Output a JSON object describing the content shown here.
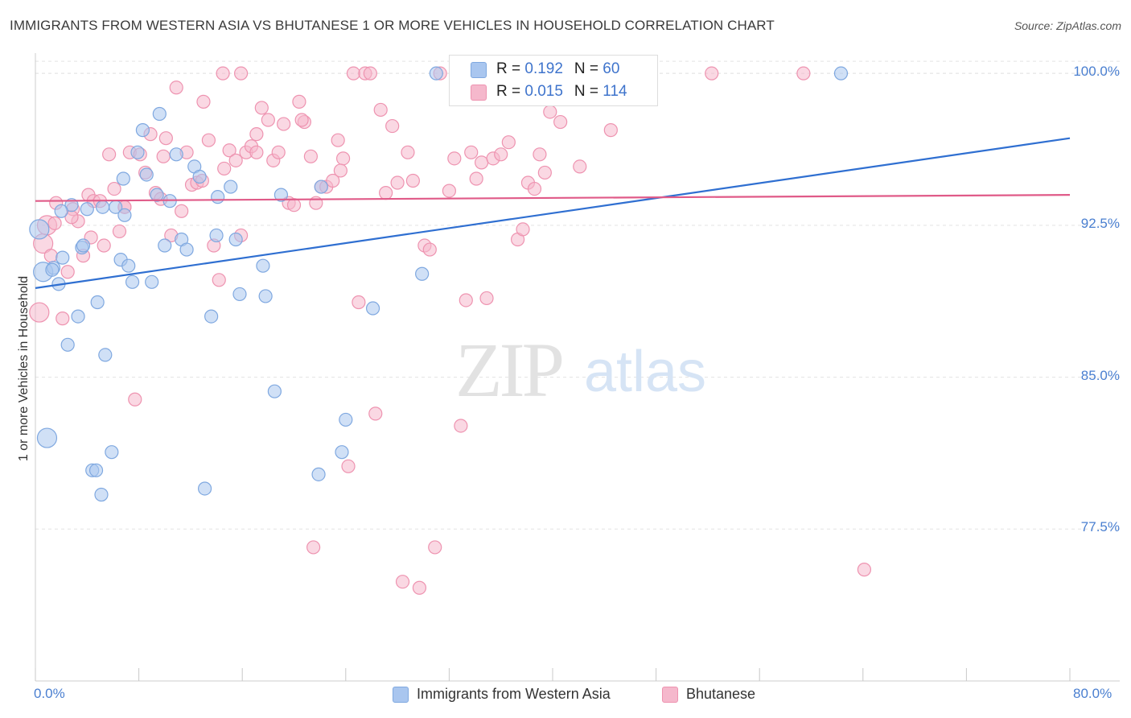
{
  "title": "IMMIGRANTS FROM WESTERN ASIA VS BHUTANESE 1 OR MORE VEHICLES IN HOUSEHOLD CORRELATION CHART",
  "source": "Source: ZipAtlas.com",
  "watermark": {
    "zip": "ZIP",
    "atlas": "atlas"
  },
  "colors": {
    "blue_fill": "#a9c6ef",
    "blue_stroke": "#7fa8e0",
    "blue_line": "#2f6fd1",
    "pink_fill": "#f5b8cc",
    "pink_stroke": "#ee93b0",
    "pink_line": "#e05a88",
    "tick_text": "#4a7fd0",
    "grid": "#e3e3e3"
  },
  "legend_top": [
    {
      "r_label": "R = ",
      "r_value": "0.192",
      "n_label": "N = ",
      "n_value": "60"
    },
    {
      "r_label": "R = ",
      "r_value": "0.015",
      "n_label": "N = ",
      "n_value": "114"
    }
  ],
  "chart_data": {
    "type": "scatter",
    "title": "IMMIGRANTS FROM WESTERN ASIA VS BHUTANESE 1 OR MORE VEHICLES IN HOUSEHOLD CORRELATION CHART",
    "xlabel": "",
    "ylabel": "1 or more Vehicles in Household",
    "xlim": [
      0,
      80
    ],
    "ylim": [
      70.0,
      101.0
    ],
    "x_tick_labels": [
      "0.0%",
      "80.0%"
    ],
    "y_ticks": [
      77.5,
      85.0,
      92.5,
      100.0
    ],
    "y_tick_labels": [
      "77.5%",
      "85.0%",
      "92.5%",
      "100.0%"
    ],
    "grid": true,
    "legend_position": "bottom",
    "series": [
      {
        "name": "Immigrants from Western Asia",
        "R": 0.192,
        "N": 60,
        "trend": {
          "x": [
            0,
            80
          ],
          "y": [
            89.4,
            96.8
          ]
        },
        "points": [
          [
            0.3,
            92.3
          ],
          [
            0.6,
            90.2
          ],
          [
            0.9,
            82.0
          ],
          [
            1.4,
            90.4
          ],
          [
            1.8,
            89.6
          ],
          [
            2.1,
            90.9
          ],
          [
            2.5,
            86.6
          ],
          [
            2.8,
            93.5
          ],
          [
            3.3,
            88.0
          ],
          [
            3.6,
            91.4
          ],
          [
            4.0,
            93.3
          ],
          [
            4.4,
            80.4
          ],
          [
            4.8,
            88.7
          ],
          [
            5.1,
            79.2
          ],
          [
            5.4,
            86.1
          ],
          [
            5.9,
            81.3
          ],
          [
            6.2,
            93.4
          ],
          [
            6.6,
            90.8
          ],
          [
            6.9,
            93.0
          ],
          [
            7.2,
            90.5
          ],
          [
            7.5,
            89.7
          ],
          [
            7.9,
            96.1
          ],
          [
            8.3,
            97.2
          ],
          [
            8.6,
            95.0
          ],
          [
            9.0,
            89.7
          ],
          [
            9.6,
            98.0
          ],
          [
            10.0,
            91.5
          ],
          [
            10.4,
            93.7
          ],
          [
            10.9,
            96.0
          ],
          [
            11.3,
            91.8
          ],
          [
            11.7,
            91.3
          ],
          [
            12.3,
            95.4
          ],
          [
            12.7,
            94.9
          ],
          [
            13.1,
            79.5
          ],
          [
            13.6,
            88.0
          ],
          [
            14.1,
            93.9
          ],
          [
            15.1,
            94.4
          ],
          [
            15.8,
            89.1
          ],
          [
            17.6,
            90.5
          ],
          [
            17.8,
            89.0
          ],
          [
            19.0,
            94.0
          ],
          [
            21.9,
            80.2
          ],
          [
            23.7,
            81.3
          ],
          [
            26.1,
            88.4
          ],
          [
            29.9,
            90.1
          ],
          [
            31.0,
            100.0
          ],
          [
            43.2,
            100.0
          ],
          [
            62.3,
            100.0
          ],
          [
            24.0,
            82.9
          ],
          [
            22.1,
            94.4
          ],
          [
            18.5,
            84.3
          ],
          [
            14.0,
            92.0
          ],
          [
            15.5,
            91.8
          ],
          [
            9.4,
            94.0
          ],
          [
            6.8,
            94.8
          ],
          [
            5.2,
            93.4
          ],
          [
            3.7,
            91.5
          ],
          [
            2.0,
            93.2
          ],
          [
            1.3,
            90.3
          ],
          [
            4.7,
            80.4
          ]
        ]
      },
      {
        "name": "Bhutanese",
        "R": 0.015,
        "N": 114,
        "trend": {
          "x": [
            0,
            80
          ],
          "y": [
            93.7,
            94.0
          ]
        },
        "points": [
          [
            0.3,
            88.2
          ],
          [
            0.6,
            91.6
          ],
          [
            0.9,
            92.5
          ],
          [
            1.2,
            91.0
          ],
          [
            1.6,
            93.6
          ],
          [
            2.1,
            87.9
          ],
          [
            2.5,
            90.2
          ],
          [
            2.9,
            93.3
          ],
          [
            3.3,
            92.7
          ],
          [
            3.7,
            91.0
          ],
          [
            4.1,
            94.0
          ],
          [
            4.5,
            93.7
          ],
          [
            5.0,
            93.7
          ],
          [
            5.3,
            91.5
          ],
          [
            5.7,
            96.0
          ],
          [
            6.1,
            94.3
          ],
          [
            6.5,
            92.2
          ],
          [
            6.9,
            93.4
          ],
          [
            7.3,
            96.1
          ],
          [
            7.7,
            83.9
          ],
          [
            8.1,
            96.0
          ],
          [
            8.5,
            95.1
          ],
          [
            8.9,
            97.0
          ],
          [
            9.3,
            94.1
          ],
          [
            9.7,
            93.8
          ],
          [
            10.1,
            96.8
          ],
          [
            10.5,
            92.0
          ],
          [
            10.9,
            99.3
          ],
          [
            11.3,
            93.2
          ],
          [
            11.7,
            96.1
          ],
          [
            12.1,
            94.5
          ],
          [
            12.5,
            94.6
          ],
          [
            13.0,
            98.6
          ],
          [
            13.4,
            96.7
          ],
          [
            13.8,
            91.5
          ],
          [
            14.2,
            89.8
          ],
          [
            14.6,
            95.3
          ],
          [
            15.0,
            96.2
          ],
          [
            15.5,
            95.7
          ],
          [
            15.9,
            100.0
          ],
          [
            16.3,
            96.1
          ],
          [
            16.7,
            96.4
          ],
          [
            17.1,
            97.0
          ],
          [
            17.5,
            98.3
          ],
          [
            18.0,
            97.7
          ],
          [
            18.4,
            95.7
          ],
          [
            18.8,
            96.1
          ],
          [
            19.2,
            97.5
          ],
          [
            19.6,
            93.6
          ],
          [
            20.0,
            93.5
          ],
          [
            20.4,
            98.6
          ],
          [
            20.8,
            97.6
          ],
          [
            21.3,
            95.9
          ],
          [
            21.7,
            93.6
          ],
          [
            22.1,
            94.4
          ],
          [
            22.5,
            94.4
          ],
          [
            23.0,
            94.7
          ],
          [
            23.4,
            96.7
          ],
          [
            23.8,
            95.8
          ],
          [
            24.2,
            80.6
          ],
          [
            24.6,
            100.0
          ],
          [
            25.0,
            88.7
          ],
          [
            25.5,
            100.0
          ],
          [
            25.9,
            100.0
          ],
          [
            26.3,
            83.2
          ],
          [
            26.7,
            98.2
          ],
          [
            27.1,
            94.1
          ],
          [
            27.6,
            97.4
          ],
          [
            28.0,
            94.6
          ],
          [
            28.4,
            74.9
          ],
          [
            28.8,
            96.1
          ],
          [
            29.2,
            94.7
          ],
          [
            29.7,
            74.6
          ],
          [
            30.1,
            91.5
          ],
          [
            30.5,
            91.3
          ],
          [
            30.9,
            76.6
          ],
          [
            31.3,
            100.0
          ],
          [
            32.0,
            94.2
          ],
          [
            32.4,
            95.8
          ],
          [
            32.9,
            82.6
          ],
          [
            33.3,
            88.8
          ],
          [
            33.7,
            96.1
          ],
          [
            34.1,
            94.8
          ],
          [
            34.5,
            95.6
          ],
          [
            34.9,
            88.9
          ],
          [
            35.4,
            95.8
          ],
          [
            36.0,
            96.0
          ],
          [
            36.6,
            96.6
          ],
          [
            37.3,
            91.8
          ],
          [
            37.7,
            92.3
          ],
          [
            38.1,
            94.6
          ],
          [
            38.6,
            94.3
          ],
          [
            39.0,
            96.0
          ],
          [
            39.4,
            95.1
          ],
          [
            39.8,
            98.1
          ],
          [
            40.6,
            97.6
          ],
          [
            42.1,
            95.4
          ],
          [
            44.0,
            100.0
          ],
          [
            44.5,
            97.2
          ],
          [
            52.3,
            100.0
          ],
          [
            59.4,
            100.0
          ],
          [
            64.1,
            75.5
          ],
          [
            15.9,
            92.0
          ],
          [
            14.5,
            100.0
          ],
          [
            21.5,
            76.6
          ],
          [
            6.9,
            93.4
          ],
          [
            2.8,
            92.9
          ],
          [
            9.9,
            95.9
          ],
          [
            12.9,
            94.7
          ],
          [
            17.1,
            96.1
          ],
          [
            20.6,
            97.7
          ],
          [
            23.6,
            95.2
          ],
          [
            1.5,
            92.6
          ],
          [
            4.3,
            91.9
          ]
        ]
      }
    ]
  },
  "legend_bottom": [
    {
      "label": "Immigrants from Western Asia"
    },
    {
      "label": "Bhutanese"
    }
  ]
}
